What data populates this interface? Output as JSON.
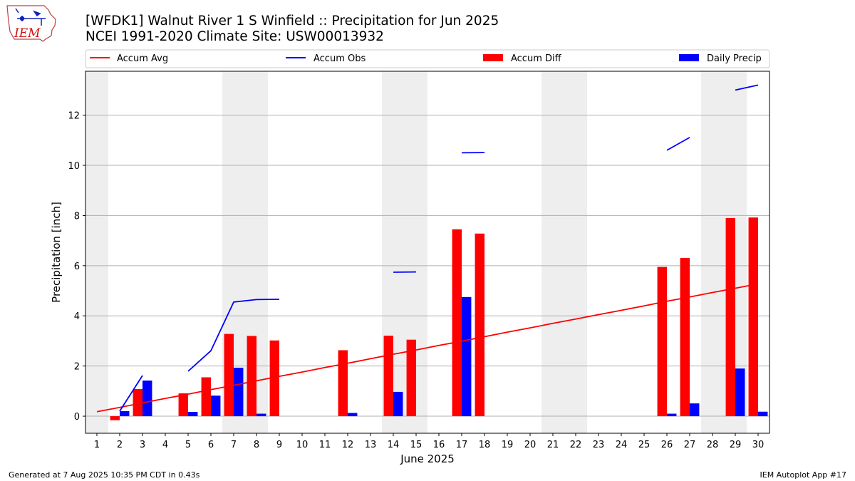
{
  "header": {
    "title_line1": "[WFDK1] Walnut River 1 S Winfield :: Precipitation for Jun 2025",
    "title_line2": "NCEI 1991-2020 Climate Site: USW00013932",
    "logo_text": "IEM",
    "logo_icon": "iowa-weather-logo-icon"
  },
  "footer": {
    "left": "Generated at 7 Aug 2025 10:35 PM CDT in 0.43s",
    "right": "IEM Autoplot App #17"
  },
  "colors": {
    "accum_avg": "#ff0000",
    "accum_obs": "#0000ff",
    "accum_diff": "#ff0000",
    "daily_precip": "#0000ff",
    "weekend_band": "#eeeeee",
    "grid": "#b0b0b0"
  },
  "chart_data": {
    "type": "bar",
    "xlabel": "June 2025",
    "ylabel": "Precipitation [inch]",
    "xlim": [
      0.5,
      30.5
    ],
    "ylim": [
      -0.68,
      13.75
    ],
    "yticks": [
      0,
      2,
      4,
      6,
      8,
      10,
      12
    ],
    "ytick_labels": [
      "0",
      "2",
      "4",
      "6",
      "8",
      "10",
      "12"
    ],
    "x": [
      1,
      2,
      3,
      4,
      5,
      6,
      7,
      8,
      9,
      10,
      11,
      12,
      13,
      14,
      15,
      16,
      17,
      18,
      19,
      20,
      21,
      22,
      23,
      24,
      25,
      26,
      27,
      28,
      29,
      30
    ],
    "xtick_labels": [
      "1",
      "2",
      "3",
      "4",
      "5",
      "6",
      "7",
      "8",
      "9",
      "10",
      "11",
      "12",
      "13",
      "14",
      "15",
      "16",
      "17",
      "18",
      "19",
      "20",
      "21",
      "22",
      "23",
      "24",
      "25",
      "26",
      "27",
      "28",
      "29",
      "30"
    ],
    "grid": "horizontal",
    "legend_placement": "top, above plot",
    "weekend_days": [
      1,
      7,
      8,
      14,
      15,
      21,
      22,
      28,
      29
    ],
    "series": [
      {
        "name": "Accum Avg",
        "kind": "line",
        "values": [
          0.18,
          0.35,
          0.53,
          0.71,
          0.88,
          1.06,
          1.23,
          1.41,
          1.59,
          1.76,
          1.94,
          2.11,
          2.29,
          2.47,
          2.64,
          2.82,
          2.99,
          3.17,
          3.35,
          3.52,
          3.7,
          3.87,
          4.05,
          4.22,
          4.4,
          4.58,
          4.75,
          4.93,
          5.1,
          5.28
        ]
      },
      {
        "name": "Accum Obs",
        "kind": "line",
        "values": [
          null,
          0.2,
          1.62,
          null,
          1.79,
          2.61,
          4.55,
          4.65,
          4.66,
          null,
          null,
          null,
          null,
          5.74,
          5.75,
          null,
          10.5,
          10.51,
          null,
          null,
          null,
          null,
          null,
          null,
          null,
          10.6,
          11.11,
          null,
          13.0,
          13.2
        ]
      },
      {
        "name": "Accum Diff",
        "kind": "bar",
        "values": [
          null,
          -0.16,
          1.08,
          null,
          0.91,
          1.55,
          3.28,
          3.2,
          3.02,
          null,
          null,
          2.63,
          null,
          3.21,
          3.05,
          null,
          7.45,
          7.28,
          null,
          null,
          null,
          null,
          null,
          null,
          null,
          5.95,
          6.31,
          null,
          7.9,
          7.92
        ]
      },
      {
        "name": "Daily Precip",
        "kind": "bar",
        "values": [
          null,
          0.2,
          1.42,
          null,
          0.17,
          0.82,
          1.93,
          0.1,
          null,
          null,
          null,
          0.13,
          null,
          0.97,
          null,
          null,
          4.75,
          null,
          null,
          null,
          null,
          null,
          null,
          null,
          null,
          0.1,
          0.51,
          null,
          1.9,
          0.18
        ]
      }
    ]
  }
}
